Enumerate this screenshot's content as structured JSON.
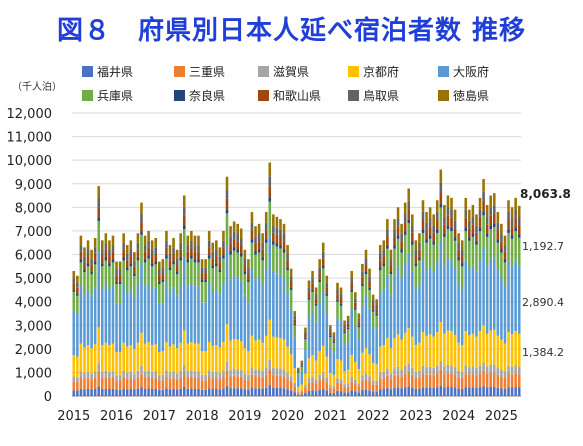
{
  "title": "図８　府県別日本人延べ宿泊者数 推移",
  "chart_data": {
    "type": "bar",
    "stacked": true,
    "unit_label": "（千人泊）",
    "ylim": [
      0,
      12000
    ],
    "yticks": [
      "0",
      "1,000",
      "2,000",
      "3,000",
      "4,000",
      "5,000",
      "6,000",
      "7,000",
      "8,000",
      "9,000",
      "10,000",
      "11,000",
      "12,000"
    ],
    "xticks": [
      "2015",
      "2016",
      "2017",
      "2018",
      "2019",
      "2020",
      "2021",
      "2022",
      "2023",
      "2024",
      "2025"
    ],
    "grid": true,
    "legend_position": "top",
    "months": [
      "2015-01",
      "2015-02",
      "2015-03",
      "2015-04",
      "2015-05",
      "2015-06",
      "2015-07",
      "2015-08",
      "2015-09",
      "2015-10",
      "2015-11",
      "2015-12",
      "2016-01",
      "2016-02",
      "2016-03",
      "2016-04",
      "2016-05",
      "2016-06",
      "2016-07",
      "2016-08",
      "2016-09",
      "2016-10",
      "2016-11",
      "2016-12",
      "2017-01",
      "2017-02",
      "2017-03",
      "2017-04",
      "2017-05",
      "2017-06",
      "2017-07",
      "2017-08",
      "2017-09",
      "2017-10",
      "2017-11",
      "2017-12",
      "2018-01",
      "2018-02",
      "2018-03",
      "2018-04",
      "2018-05",
      "2018-06",
      "2018-07",
      "2018-08",
      "2018-09",
      "2018-10",
      "2018-11",
      "2018-12",
      "2019-01",
      "2019-02",
      "2019-03",
      "2019-04",
      "2019-05",
      "2019-06",
      "2019-07",
      "2019-08",
      "2019-09",
      "2019-10",
      "2019-11",
      "2019-12",
      "2020-01",
      "2020-02",
      "2020-03",
      "2020-04",
      "2020-05",
      "2020-06",
      "2020-07",
      "2020-08",
      "2020-09",
      "2020-10",
      "2020-11",
      "2020-12",
      "2021-01",
      "2021-02",
      "2021-03",
      "2021-04",
      "2021-05",
      "2021-06",
      "2021-07",
      "2021-08",
      "2021-09",
      "2021-10",
      "2021-11",
      "2021-12",
      "2022-01",
      "2022-02",
      "2022-03",
      "2022-04",
      "2022-05",
      "2022-06",
      "2022-07",
      "2022-08",
      "2022-09",
      "2022-10",
      "2022-11",
      "2022-12",
      "2023-01",
      "2023-02",
      "2023-03",
      "2023-04",
      "2023-05",
      "2023-06",
      "2023-07",
      "2023-08",
      "2023-09",
      "2023-10",
      "2023-11",
      "2023-12",
      "2024-01",
      "2024-02",
      "2024-03",
      "2024-04",
      "2024-05",
      "2024-06",
      "2024-07",
      "2024-08",
      "2024-09",
      "2024-10",
      "2024-11",
      "2024-12",
      "2025-01",
      "2025-02",
      "2025-03",
      "2025-04",
      "2025-05",
      "2025-06"
    ],
    "totals": [
      5300,
      5100,
      6800,
      6300,
      6600,
      6200,
      6700,
      8900,
      6600,
      6900,
      6600,
      6800,
      5700,
      5700,
      6900,
      6400,
      6600,
      6100,
      6900,
      8200,
      6800,
      7000,
      6600,
      6700,
      5700,
      5800,
      7000,
      6400,
      6700,
      6200,
      6900,
      8500,
      6800,
      7000,
      6800,
      6800,
      5800,
      5800,
      7000,
      6500,
      6600,
      6300,
      7000,
      9300,
      7200,
      7400,
      7300,
      7100,
      6200,
      5800,
      7800,
      7200,
      7300,
      6900,
      7800,
      9900,
      7700,
      7600,
      7500,
      7300,
      6400,
      5400,
      3600,
      1200,
      1500,
      2900,
      4900,
      5300,
      4600,
      5800,
      6500,
      5100,
      3000,
      2700,
      4800,
      4600,
      3200,
      3400,
      5300,
      4400,
      3500,
      5600,
      6200,
      5400,
      4300,
      4100,
      6400,
      6600,
      7500,
      6200,
      7500,
      8000,
      7300,
      8200,
      8800,
      7700,
      6600,
      6900,
      8300,
      7800,
      8000,
      7700,
      8300,
      9600,
      8100,
      8500,
      8400,
      7900,
      6900,
      6600,
      8400,
      7900,
      8100,
      7700,
      8400,
      9200,
      8100,
      8500,
      8600,
      7800,
      7300,
      6800,
      8300,
      8000,
      8400,
      8064
    ],
    "series": [
      {
        "name": "福井県",
        "color": "#4a72c4",
        "share": 0.045
      },
      {
        "name": "三重県",
        "color": "#ed7d31",
        "share": 0.07
      },
      {
        "name": "滋賀県",
        "color": "#a5a5a5",
        "share": 0.04
      },
      {
        "name": "京都府",
        "color": "#ffc000",
        "share": 0.172
      },
      {
        "name": "大阪府",
        "color": "#5b9bd5",
        "share": 0.358
      },
      {
        "name": "兵庫県",
        "color": "#70ad47",
        "share": 0.148
      },
      {
        "name": "奈良県",
        "color": "#264478",
        "share": 0.018
      },
      {
        "name": "和歌山県",
        "color": "#9e480e",
        "share": 0.048
      },
      {
        "name": "鳥取県",
        "color": "#636363",
        "share": 0.042
      },
      {
        "name": "徳島県",
        "color": "#997300",
        "share": 0.059
      }
    ],
    "annotations": {
      "total": "8,063.8",
      "hyogo": "1,192.7",
      "osaka": "2,890.4",
      "kyoto": "1,384.2"
    }
  }
}
